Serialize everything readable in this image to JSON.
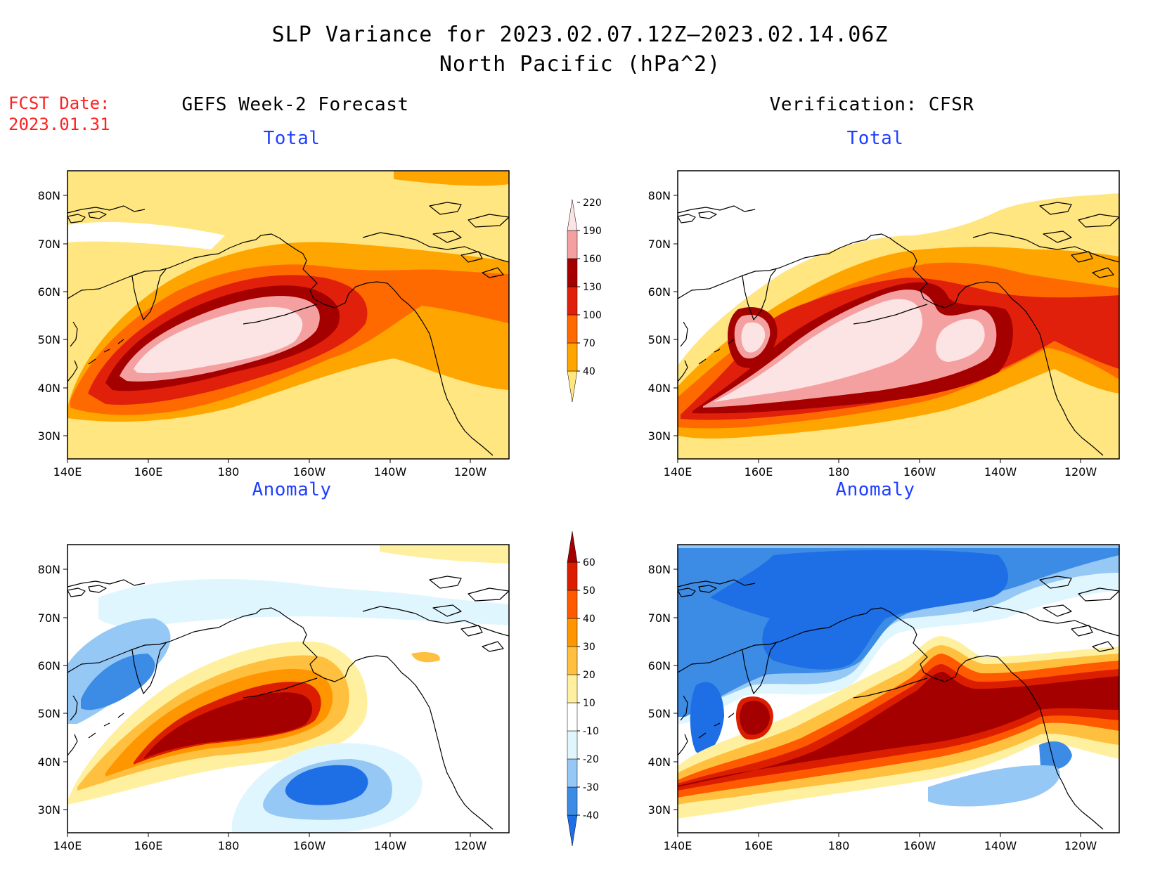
{
  "header": {
    "title_line1": "SLP Variance for 2023.02.07.12Z–2023.02.14.06Z",
    "title_line2": "North Pacific (hPa^2)"
  },
  "fcst": {
    "label": "FCST Date:",
    "date": "2023.01.31"
  },
  "columns": {
    "left": "GEFS Week-2 Forecast",
    "right": "Verification: CFSR"
  },
  "panels": {
    "total_label": "Total",
    "anomaly_label": "Anomaly"
  },
  "axes": {
    "lat_labels": [
      "80N",
      "70N",
      "60N",
      "50N",
      "40N",
      "30N"
    ],
    "lon_labels": [
      "140E",
      "160E",
      "180",
      "160W",
      "140W",
      "120W"
    ]
  },
  "colorbars": {
    "total": {
      "levels": [
        "40",
        "70",
        "100",
        "130",
        "160",
        "190",
        "220"
      ],
      "colors": [
        "#ffe680",
        "#ffa500",
        "#ff6a00",
        "#e0200a",
        "#a50000",
        "#f5a0a0",
        "#fde4e4"
      ]
    },
    "anomaly": {
      "levels": [
        "-40",
        "-30",
        "-20",
        "-10",
        "10",
        "20",
        "30",
        "40",
        "50",
        "60"
      ],
      "colors": [
        "#1e6ee6",
        "#3c8ce6",
        "#96c8f5",
        "#e0f6ff",
        "#ffffff",
        "#fff0a0",
        "#ffc040",
        "#ff9600",
        "#ff5a00",
        "#dc1e00",
        "#a50000"
      ]
    }
  }
}
